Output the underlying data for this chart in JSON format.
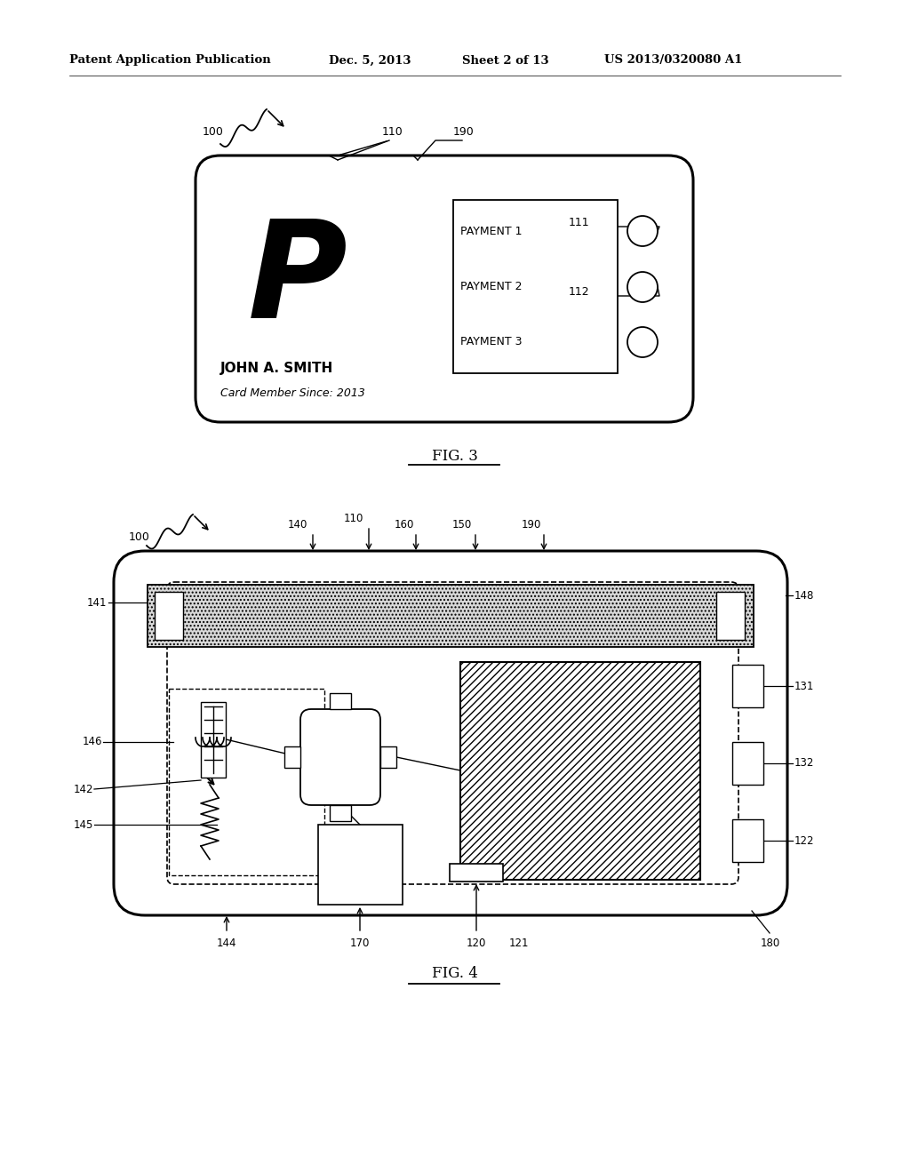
{
  "bg_color": "#ffffff",
  "header_text": "Patent Application Publication",
  "header_date": "Dec. 5, 2013",
  "header_sheet": "Sheet 2 of 13",
  "header_patent": "US 2013/0320080 A1",
  "fig3_label": "FIG. 3",
  "fig4_label": "FIG. 4"
}
